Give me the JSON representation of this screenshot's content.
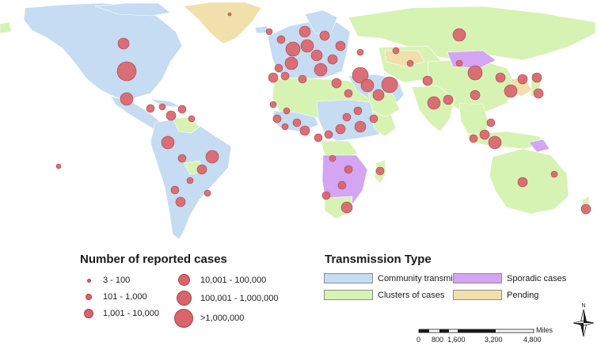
{
  "colors": {
    "community": "#c5dcf2",
    "clusters": "#d7f3b4",
    "sporadic": "#d3a5f3",
    "pending": "#f1dfac",
    "bubble": "#d9646b",
    "bubble_stroke": "#a8444b"
  },
  "cases_legend": {
    "title": "Number of reported cases",
    "items": [
      {
        "label": "3 - 100"
      },
      {
        "label": "101 - 1,000"
      },
      {
        "label": "1,001 - 10,000"
      },
      {
        "label": "10,001 - 100,000"
      },
      {
        "label": "100,001 - 1,000,000"
      },
      {
        "label": ">1,000,000"
      }
    ]
  },
  "transmission_legend": {
    "title": "Transmission Type",
    "items": [
      {
        "label": "Community transmission",
        "color_key": "community"
      },
      {
        "label": "Sporadic cases",
        "color_key": "sporadic"
      },
      {
        "label": "Clusters of cases",
        "color_key": "clusters"
      },
      {
        "label": "Pending",
        "color_key": "pending"
      }
    ]
  },
  "scale_bar": {
    "unit": "Miles",
    "ticks": [
      "0",
      "800",
      "1,600",
      "3,200",
      "4,800"
    ]
  },
  "north_arrow": {
    "label": "N",
    "icon": "compass-rose-icon"
  }
}
